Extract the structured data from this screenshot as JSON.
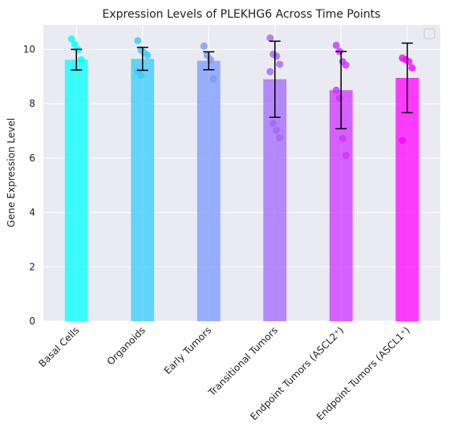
{
  "chart_data": {
    "type": "bar",
    "title": "Expression Levels of PLEKHG6 Across Time Points",
    "xlabel": "",
    "ylabel": "Gene Expression Level",
    "ylim": [
      0,
      10.9
    ],
    "yticks": [
      0,
      2,
      4,
      6,
      8,
      10
    ],
    "grid": true,
    "legend": "top-right (empty)",
    "categories": [
      "Basal Cells",
      "Organoids",
      "Early Tumors",
      "Transitional Tumors",
      "Endpoint Tumors (ASCL2⁺)",
      "Endpoint Tumors (ASCL1⁺)"
    ],
    "values": [
      9.62,
      9.65,
      9.58,
      8.9,
      8.5,
      8.95
    ],
    "errors": [
      0.38,
      0.42,
      0.33,
      1.4,
      1.42,
      1.28
    ],
    "colors": [
      "#00ffff",
      "#33ccff",
      "#7a99ff",
      "#a366ff",
      "#cc33ff",
      "#ff00ff"
    ],
    "points": [
      [
        10.38,
        10.18,
        9.98,
        9.62
      ],
      [
        10.32,
        9.98,
        9.88,
        9.78,
        9.2,
        9.05
      ],
      [
        10.12,
        9.78,
        9.62,
        8.92
      ],
      [
        10.42,
        9.82,
        9.75,
        9.45,
        9.18,
        7.28,
        7.02,
        6.75
      ],
      [
        10.15,
        9.92,
        9.55,
        9.42,
        8.5,
        8.2,
        6.72,
        6.1
      ],
      [
        9.68,
        9.62,
        9.55,
        9.32,
        6.65
      ]
    ]
  }
}
